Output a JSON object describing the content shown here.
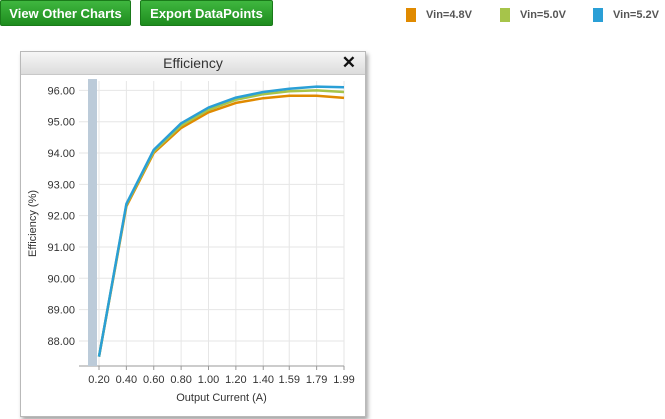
{
  "toolbar": {
    "view_label": "View Other Charts",
    "export_label": "Export DataPoints"
  },
  "legend": [
    {
      "label": "Vin=4.8V",
      "color": "#e08a00"
    },
    {
      "label": "Vin=5.0V",
      "color": "#a6c44a"
    },
    {
      "label": "Vin=5.2V",
      "color": "#2a9fd6"
    }
  ],
  "panel": {
    "title": "Efficiency",
    "close_icon": "close-icon"
  },
  "chart_data": {
    "type": "line",
    "xlabel": "Output Current (A)",
    "ylabel": "Efficiency (%)",
    "x_ticks": [
      "0.20",
      "0.40",
      "0.60",
      "0.80",
      "1.00",
      "1.20",
      "1.40",
      "1.59",
      "1.79",
      "1.99"
    ],
    "y_ticks": [
      "88.00",
      "89.00",
      "90.00",
      "91.00",
      "92.00",
      "93.00",
      "94.00",
      "95.00",
      "96.00"
    ],
    "ylim": [
      87.2,
      96.3
    ],
    "grid": true,
    "legend_position": "top",
    "x": [
      0.2,
      0.4,
      0.6,
      0.8,
      1.0,
      1.2,
      1.4,
      1.59,
      1.79,
      1.99
    ],
    "series": [
      {
        "name": "Vin=4.8V",
        "color": "#e08a00",
        "values": [
          87.5,
          92.3,
          94.0,
          94.8,
          95.3,
          95.6,
          95.75,
          95.83,
          95.83,
          95.76
        ]
      },
      {
        "name": "Vin=5.0V",
        "color": "#a6c44a",
        "values": [
          87.5,
          92.35,
          94.05,
          94.88,
          95.38,
          95.7,
          95.88,
          95.97,
          96.0,
          95.95
        ]
      },
      {
        "name": "Vin=5.2V",
        "color": "#2a9fd6",
        "values": [
          87.5,
          92.38,
          94.1,
          94.95,
          95.45,
          95.77,
          95.95,
          96.05,
          96.12,
          96.1
        ]
      }
    ]
  }
}
